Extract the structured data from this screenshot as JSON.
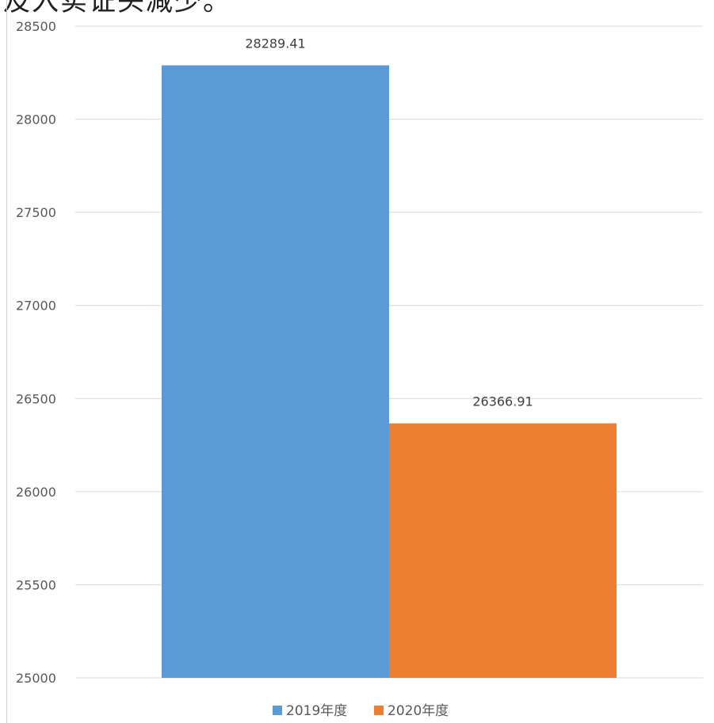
{
  "page": {
    "top_text": "及入实证头减少。"
  },
  "chart_data": {
    "type": "bar",
    "title": "",
    "xlabel": "",
    "ylabel": "",
    "categories": [
      ""
    ],
    "series": [
      {
        "name": "2019年度",
        "values": [
          28289.41
        ],
        "color": "#5B9BD5",
        "label": "28289.41"
      },
      {
        "name": "2020年度",
        "values": [
          26366.91
        ],
        "color": "#ED7D31",
        "label": "26366.91"
      }
    ],
    "ylim": [
      25000,
      28500
    ],
    "yticks": [
      25000,
      25500,
      26000,
      26500,
      27000,
      27500,
      28000,
      28500
    ],
    "grid": true,
    "gridline_color": "#d9d9d9",
    "legend_position": "bottom"
  }
}
